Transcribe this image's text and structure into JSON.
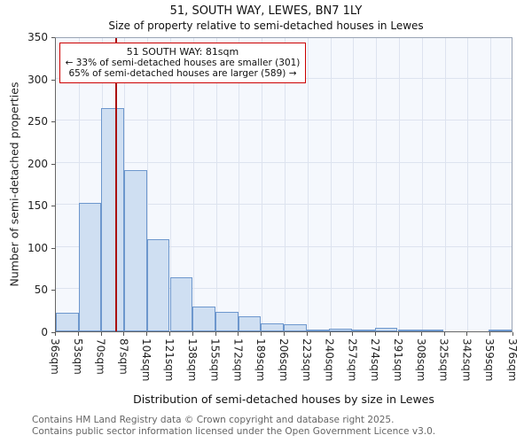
{
  "title": "51, SOUTH WAY, LEWES, BN7 1LY",
  "subtitle": "Size of property relative to semi-detached houses in Lewes",
  "annotation": {
    "line1": "51 SOUTH WAY: 81sqm",
    "line2": "← 33% of semi-detached houses are smaller (301)",
    "line3": "65% of semi-detached houses are larger (589) →"
  },
  "footer": {
    "line1": "Contains HM Land Registry data © Crown copyright and database right 2025.",
    "line2": "Contains public sector information licensed under the Open Government Licence v3.0."
  },
  "chart_data": {
    "type": "bar",
    "title": "51, SOUTH WAY, LEWES, BN7 1LY",
    "subtitle": "Size of property relative to semi-detached houses in Lewes",
    "xlabel": "Distribution of semi-detached houses by size in Lewes",
    "ylabel": "Number of semi-detached properties",
    "ylim": [
      0,
      350
    ],
    "yticks": [
      0,
      50,
      100,
      150,
      200,
      250,
      300,
      350
    ],
    "bin_width_sqm": 17,
    "bin_start_sqm": 36,
    "bin_end_sqm": 376,
    "tick_labels": [
      "36sqm",
      "53sqm",
      "70sqm",
      "87sqm",
      "104sqm",
      "121sqm",
      "138sqm",
      "155sqm",
      "172sqm",
      "189sqm",
      "206sqm",
      "223sqm",
      "240sqm",
      "257sqm",
      "274sqm",
      "291sqm",
      "308sqm",
      "325sqm",
      "342sqm",
      "359sqm",
      "376sqm"
    ],
    "values": [
      22,
      153,
      267,
      192,
      110,
      65,
      30,
      23,
      18,
      10,
      9,
      2,
      3,
      2,
      4,
      1,
      1,
      0,
      0,
      1
    ],
    "marker": {
      "label": "51 SOUTH WAY",
      "value_sqm": 81,
      "color": "#aa1111"
    },
    "grid": true,
    "legend": "none",
    "bar_fill": "#cfdff2",
    "bar_border": "#6d97cd",
    "annotation_border": "#cc0000"
  }
}
